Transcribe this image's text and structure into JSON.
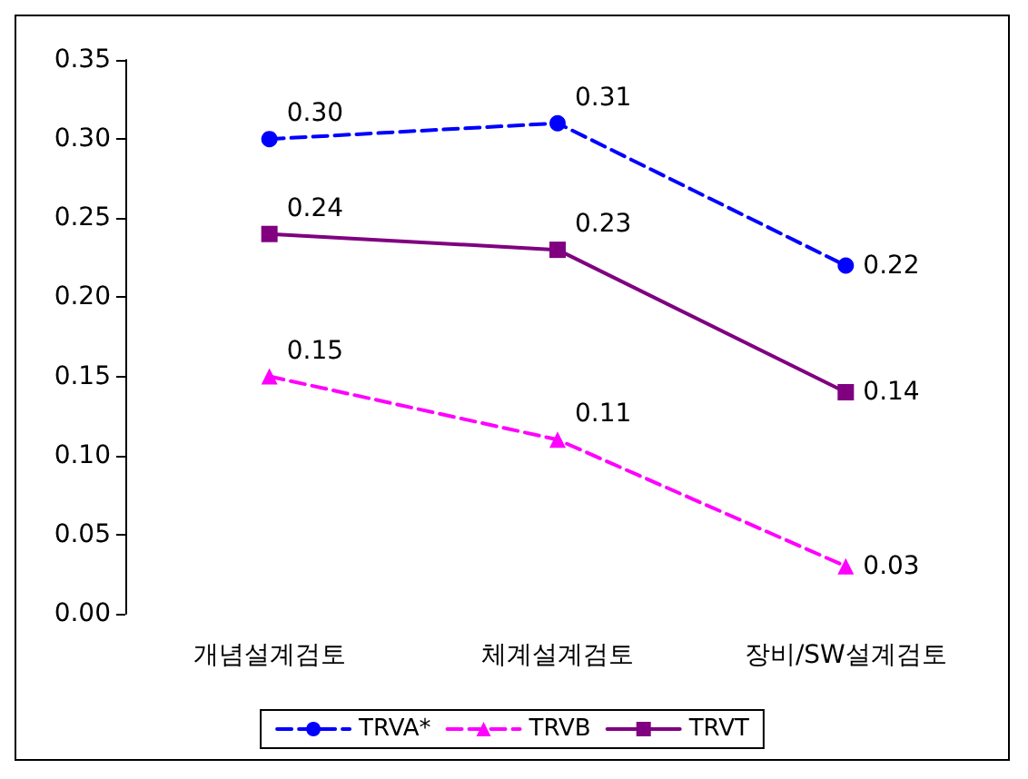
{
  "chart_data": {
    "type": "line",
    "categories": [
      "개념설계검토",
      "체계설계검토",
      "장비/SW설계검토"
    ],
    "series": [
      {
        "name": "TRVA*",
        "color": "#0000ff",
        "marker": "circle",
        "line_style": "dashed",
        "values": [
          0.3,
          0.31,
          0.22
        ],
        "value_labels": [
          "0.30",
          "0.31",
          "0.22"
        ]
      },
      {
        "name": "TRVB",
        "color": "#ff00ff",
        "marker": "triangle",
        "line_style": "dashed",
        "values": [
          0.15,
          0.11,
          0.03
        ],
        "value_labels": [
          "0.15",
          "0.11",
          "0.03"
        ]
      },
      {
        "name": "TRVT",
        "color": "#800080",
        "marker": "square",
        "line_style": "solid",
        "values": [
          0.24,
          0.23,
          0.14
        ],
        "value_labels": [
          "0.24",
          "0.23",
          "0.14"
        ]
      }
    ],
    "ylim": [
      0,
      0.35
    ],
    "yticks": [
      {
        "value": 0,
        "label": "0.00"
      },
      {
        "value": 0.05,
        "label": "0.05"
      },
      {
        "value": 0.1,
        "label": "0.10"
      },
      {
        "value": 0.15,
        "label": "0.15"
      },
      {
        "value": 0.2,
        "label": "0.20"
      },
      {
        "value": 0.25,
        "label": "0.25"
      },
      {
        "value": 0.3,
        "label": "0.30"
      },
      {
        "value": 0.35,
        "label": "0.35"
      }
    ],
    "grid": false,
    "legend": "bottom"
  }
}
